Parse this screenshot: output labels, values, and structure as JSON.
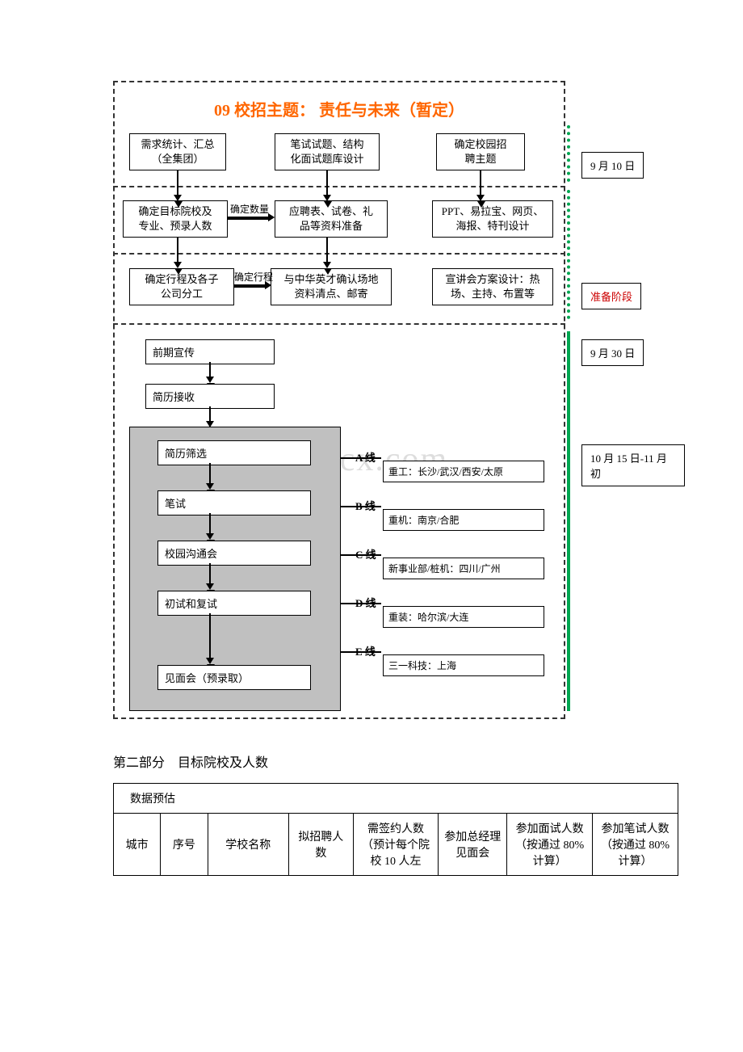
{
  "diagram": {
    "title": "09 校招主题：  责任与未来（暂定）",
    "row1": {
      "a": "需求统计、汇总\n（全集团）",
      "b": "笔试试题、结构\n化面试题库设计",
      "c": "确定校园招\n聘主题"
    },
    "row2": {
      "a": "确定目标院校及\n专业、预录人数",
      "b": "应聘表、试卷、礼\n品等资料准备",
      "c": "PPT、易拉宝、网页、\n海报、特刊设计"
    },
    "row3": {
      "a": "确定行程及各子\n公司分工",
      "b": "与中华英才确认场地\n资料清点、邮寄",
      "c": "宣讲会方案设计：热\n场、主持、布置等"
    },
    "edge_labels": {
      "qty": "确定数量",
      "sched": "确定行程"
    },
    "pre": {
      "a": "前期宣传",
      "b": "简历接收"
    },
    "process": [
      "简历筛选",
      "笔试",
      "校园沟通会",
      "初试和复试",
      "见面会（预录取）"
    ],
    "lines": [
      {
        "label": "A 线",
        "content": "重工：长沙/武汉/西安/太原"
      },
      {
        "label": "B 线",
        "content": "重机：南京/合肥"
      },
      {
        "label": "C 线",
        "content": "新事业部/桩机：四川/广州"
      },
      {
        "label": "D 线",
        "content": "重装：哈尔滨/大连"
      },
      {
        "label": "E 线",
        "content": "三一科技：上海"
      }
    ],
    "side": {
      "d1": "9 月 10 日",
      "prep": "准备阶段",
      "d2": "9 月 30 日",
      "d3": "10 月 15 日-11 月初"
    },
    "watermark": "www.bdocx.com"
  },
  "section2": {
    "title": "第二部分　目标院校及人数",
    "subtitle": "数据预估",
    "columns": [
      "城市",
      "序号",
      "学校名称",
      "拟招聘人数",
      "需签约人数（预计每个院校 10 人左",
      "参加总经理见面会",
      "参加面试人数（按通过 80%计算）",
      "参加笔试人数（按通过 80% 计算）"
    ]
  },
  "colors": {
    "title": "#ff6600",
    "accent_green": "#00a651",
    "shaded_bg": "#c0c0c0",
    "red_text": "#cc0000",
    "border": "#000000",
    "watermark": "#dddddd"
  }
}
